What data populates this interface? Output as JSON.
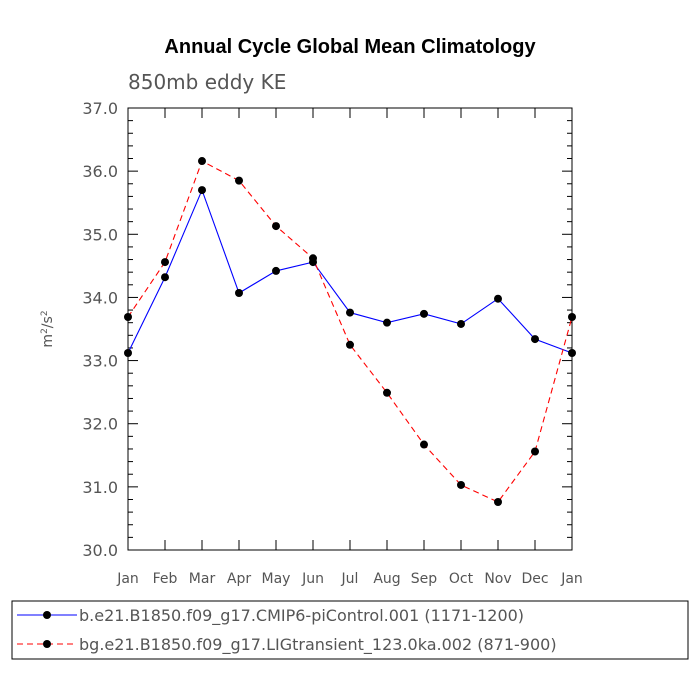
{
  "chart_data": {
    "type": "line",
    "title": "Annual Cycle Global Mean Climatology",
    "subtitle": "850mb eddy KE",
    "ylabel_main": "m",
    "ylabel_sup1": "2",
    "ylabel_sep": "/s",
    "ylabel_sup2": "2",
    "ylim": [
      30.0,
      37.0
    ],
    "yticks": [
      "30.0",
      "31.0",
      "32.0",
      "33.0",
      "34.0",
      "35.0",
      "36.0",
      "37.0"
    ],
    "categories": [
      "Jan",
      "Feb",
      "Mar",
      "Apr",
      "May",
      "Jun",
      "Jul",
      "Aug",
      "Sep",
      "Oct",
      "Nov",
      "Dec",
      "Jan"
    ],
    "series": [
      {
        "name": "b.e21.B1850.f09_g17.CMIP6-piControl.001 (1171-1200)",
        "color": "#0000ff",
        "style": "solid",
        "values": [
          33.12,
          34.32,
          35.7,
          34.07,
          34.42,
          34.56,
          33.76,
          33.6,
          33.74,
          33.58,
          33.98,
          33.34,
          33.12
        ]
      },
      {
        "name": "bg.e21.B1850.f09_g17.LIGtransient_123.0ka.002 (871-900)",
        "color": "#ff0000",
        "style": "dashed",
        "values": [
          33.69,
          34.56,
          36.16,
          35.85,
          35.13,
          34.62,
          33.25,
          32.49,
          31.67,
          31.03,
          30.76,
          31.56,
          33.69
        ]
      }
    ]
  }
}
